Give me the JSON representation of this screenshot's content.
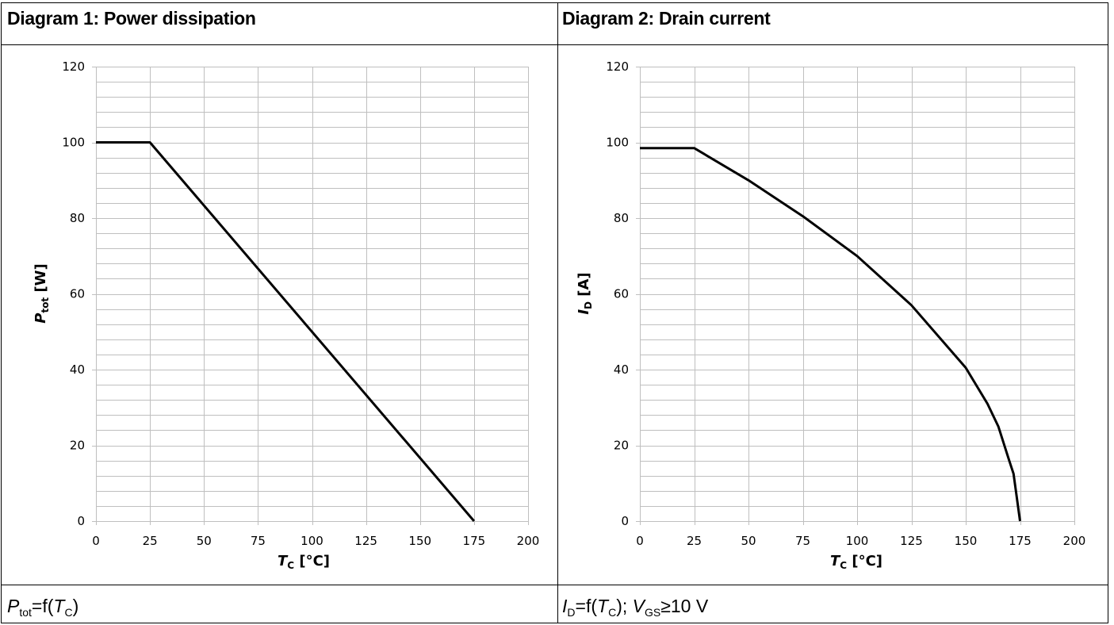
{
  "left_panel": {
    "title": "Diagram 1: Power dissipation",
    "caption": {
      "sym": "P",
      "sym_sub": "tot",
      "eq": "=f(",
      "var": "T",
      "var_sub": "C",
      "close": ")"
    }
  },
  "right_panel": {
    "title": "Diagram 2: Drain current",
    "caption": {
      "sym": "I",
      "sym_sub": "D",
      "eq": "=f(",
      "var": "T",
      "var_sub": "C",
      "close": "); ",
      "cond": "V",
      "cond_sub": "GS",
      "cond_rest": "≥10 V"
    }
  },
  "chart_data": [
    {
      "type": "line",
      "xlabel": {
        "sym": "T",
        "sub": "C",
        "unit": "[°C]"
      },
      "ylabel": {
        "sym": "P",
        "sub": "tot",
        "unit": "[W]"
      },
      "xlim": [
        0,
        200
      ],
      "ylim": [
        0,
        120
      ],
      "xticks": [
        0,
        25,
        50,
        75,
        100,
        125,
        150,
        175,
        200
      ],
      "yticks": [
        0,
        20,
        40,
        60,
        80,
        100,
        120
      ],
      "grid": true,
      "line_color": "#000000",
      "grid_color": "#bfbfbf",
      "series": [
        {
          "x": [
            0,
            25,
            175
          ],
          "y": [
            100,
            100,
            0
          ]
        }
      ]
    },
    {
      "type": "line",
      "xlabel": {
        "sym": "T",
        "sub": "C",
        "unit": "[°C]"
      },
      "ylabel": {
        "sym": "I",
        "sub": "D",
        "unit": "[A]"
      },
      "xlim": [
        0,
        200
      ],
      "ylim": [
        0,
        120
      ],
      "xticks": [
        0,
        25,
        50,
        75,
        100,
        125,
        150,
        175,
        200
      ],
      "yticks": [
        0,
        20,
        40,
        60,
        80,
        100,
        120
      ],
      "grid": true,
      "line_color": "#000000",
      "grid_color": "#bfbfbf",
      "series": [
        {
          "x": [
            0,
            25,
            50,
            75,
            100,
            125,
            150,
            160,
            165,
            170,
            172,
            175
          ],
          "y": [
            98.5,
            98.5,
            90,
            80.5,
            70,
            57,
            40.5,
            31,
            25,
            16,
            12.5,
            0
          ]
        }
      ]
    }
  ]
}
